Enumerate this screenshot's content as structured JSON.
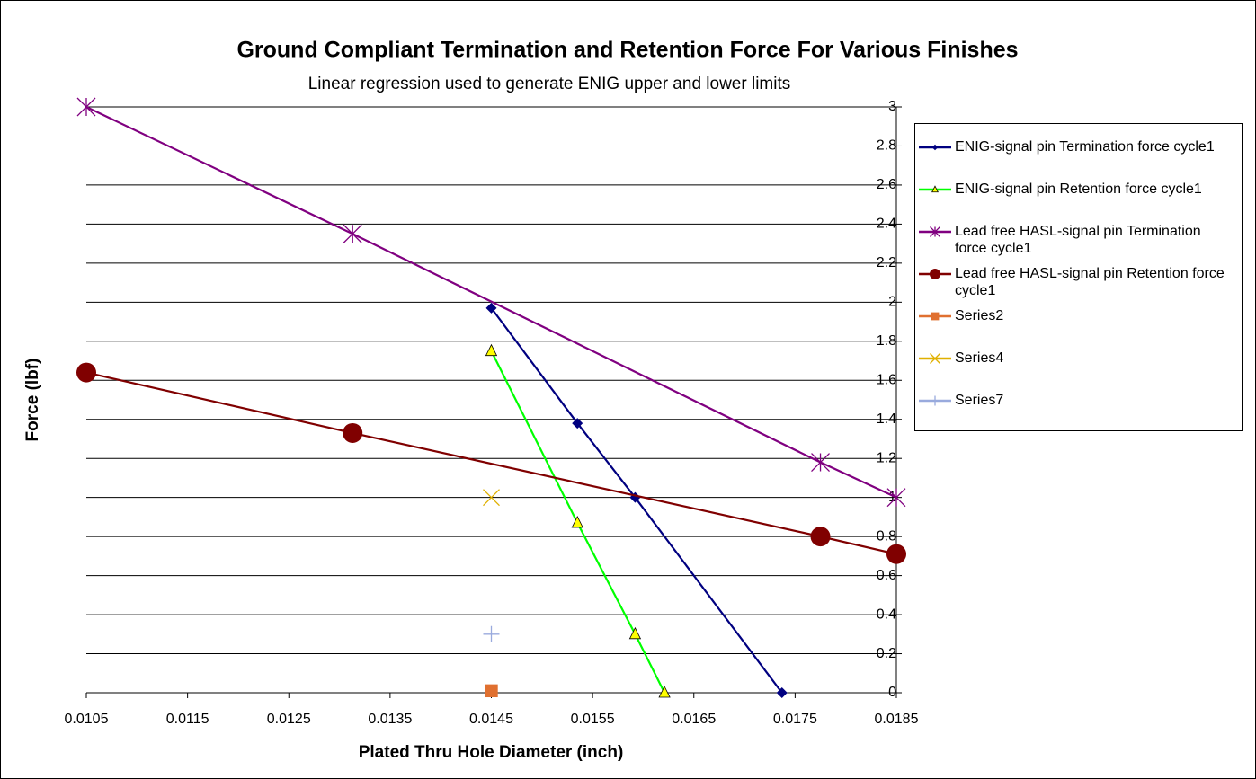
{
  "chart_data": {
    "type": "scatter",
    "title": "Ground Compliant Termination and  Retention Force For Various Finishes",
    "subtitle": "Linear regression used to generate ENIG upper and lower limits",
    "xlabel": "Plated Thru Hole Diameter (inch)",
    "ylabel": "Force (lbf)",
    "xlim": [
      0.0105,
      0.0185
    ],
    "xticks": [
      0.0105,
      0.0115,
      0.0125,
      0.0135,
      0.0145,
      0.0155,
      0.0165,
      0.0175,
      0.0185
    ],
    "ylim": [
      0,
      3
    ],
    "yticks": [
      0,
      0.2,
      0.4,
      0.6,
      0.8,
      1,
      1.2,
      1.4,
      1.6,
      1.8,
      2,
      2.2,
      2.4,
      2.6,
      2.8,
      3
    ],
    "grid": true,
    "legend": "right",
    "series": [
      {
        "name": "ENIG-signal pin Termination force  cycle1",
        "color": "#000080",
        "marker": "diamond",
        "marker_color": "#000080",
        "x": [
          0.0145,
          0.01535,
          0.01592,
          0.01737
        ],
        "values": [
          1.97,
          1.38,
          1.0,
          0
        ]
      },
      {
        "name": "ENIG-signal pin Retention force cycle1",
        "color": "#00ff00",
        "marker": "triangle",
        "marker_color": "#ffff00",
        "x": [
          0.0145,
          0.01535,
          0.01592,
          0.01621
        ],
        "values": [
          1.75,
          0.87,
          0.3,
          0
        ]
      },
      {
        "name": "Lead free HASL-signal pin Termination force  cycle1",
        "color": "#800080",
        "marker": "star",
        "marker_color": "#800080",
        "x": [
          0.0105,
          0.01313,
          0.01775,
          0.0185
        ],
        "values": [
          3.0,
          2.35,
          1.18,
          1.0
        ]
      },
      {
        "name": "Lead free HASL-signal pin Retention force  cycle1",
        "color": "#800000",
        "marker": "circle",
        "marker_color": "#800000",
        "x": [
          0.0105,
          0.01313,
          0.01775,
          0.0185
        ],
        "values": [
          1.64,
          1.33,
          0.8,
          0.71
        ]
      },
      {
        "name": "Series2",
        "color": "#e07030",
        "marker": "square",
        "marker_color": "#e07030",
        "x": [
          0.0145
        ],
        "values": [
          0.01
        ]
      },
      {
        "name": "Series4",
        "color": "#e0b000",
        "marker": "x",
        "marker_color": "#e0b000",
        "x": [
          0.0145
        ],
        "values": [
          1.0
        ]
      },
      {
        "name": "Series7",
        "color": "#99aadd",
        "marker": "plus",
        "marker_color": "#99aadd",
        "x": [
          0.0145
        ],
        "values": [
          0.3
        ]
      }
    ]
  }
}
